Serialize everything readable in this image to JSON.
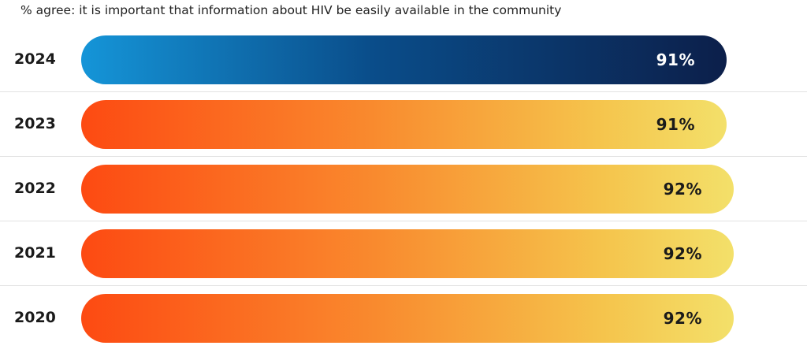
{
  "chart_data": {
    "type": "bar",
    "orientation": "horizontal",
    "title": "% agree: it is important that information about HIV be easily available in the community",
    "categories": [
      "2024",
      "2023",
      "2022",
      "2021",
      "2020"
    ],
    "values": [
      91,
      91,
      92,
      92,
      92
    ],
    "value_labels": [
      "91%",
      "91%",
      "92%",
      "92%",
      "92%"
    ],
    "bar_styles": [
      "blue",
      "warm",
      "warm",
      "warm",
      "warm"
    ],
    "colors": {
      "highlight_gradient": [
        "#1595d8",
        "#0c1f4a"
      ],
      "base_gradient": [
        "#fd4a12",
        "#f3e06a"
      ]
    },
    "legend": "none",
    "grid": false
  }
}
